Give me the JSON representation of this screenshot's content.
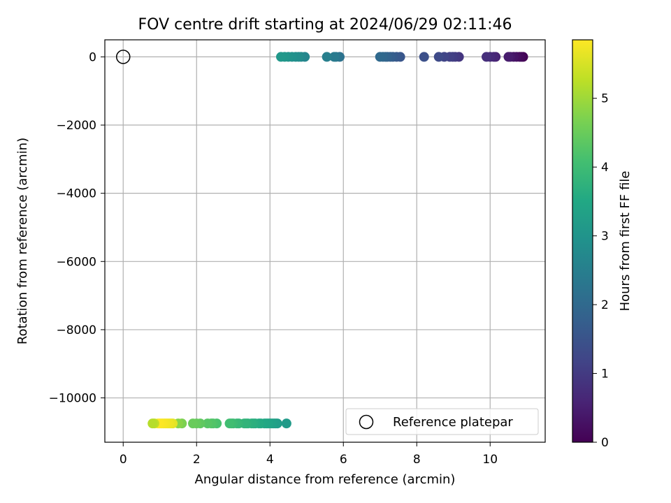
{
  "chart_data": {
    "type": "scatter",
    "title": "FOV centre drift starting at 2024/06/29 02:11:46",
    "xlabel": "Angular distance from reference (arcmin)",
    "ylabel": "Rotation from reference (arcmin)",
    "xlim": [
      -0.5,
      11.5
    ],
    "ylim": [
      -11300,
      500
    ],
    "xticks": [
      0,
      2,
      4,
      6,
      8,
      10
    ],
    "xtick_labels": [
      "0",
      "2",
      "4",
      "6",
      "8",
      "10"
    ],
    "yticks": [
      0,
      -2000,
      -4000,
      -6000,
      -8000,
      -10000
    ],
    "ytick_labels": [
      "0",
      "−2000",
      "−4000",
      "−6000",
      "−8000",
      "−10000"
    ],
    "grid": true,
    "legend": {
      "position": "lower-right",
      "entries": [
        "Reference platepar"
      ]
    },
    "reference_point": {
      "x": 0,
      "y": 0,
      "label": "Reference platepar"
    },
    "colorbar": {
      "label": "Hours from first FF file",
      "range": [
        0,
        5.85
      ],
      "ticks": [
        0,
        1,
        2,
        3,
        4,
        5
      ],
      "tick_labels": [
        "0",
        "1",
        "2",
        "3",
        "4",
        "5"
      ],
      "colormap": "viridis"
    },
    "series": [
      {
        "x": [
          10.9,
          10.85,
          10.8,
          10.72,
          10.64,
          10.55,
          10.5,
          10.15,
          10.1,
          10.0,
          9.9,
          9.15,
          9.05,
          8.98,
          8.9,
          8.75,
          8.6,
          8.2,
          7.55,
          7.45,
          7.35,
          7.28,
          7.2,
          7.15,
          7.08,
          7.0,
          5.9,
          5.8,
          5.75,
          5.55,
          4.95,
          4.85,
          4.78,
          4.7,
          4.6,
          4.5,
          4.4,
          4.3
        ],
        "y": [
          0,
          0,
          0,
          0,
          0,
          0,
          0,
          0,
          0,
          0,
          0,
          0,
          0,
          0,
          0,
          0,
          0,
          0,
          0,
          0,
          0,
          0,
          0,
          0,
          0,
          0,
          0,
          0,
          0,
          0,
          0,
          0,
          0,
          0,
          0,
          0,
          0,
          0
        ],
        "hours": [
          0.0,
          0.08,
          0.15,
          0.22,
          0.3,
          0.38,
          0.45,
          0.55,
          0.62,
          0.7,
          0.78,
          0.9,
          0.98,
          1.05,
          1.12,
          1.2,
          1.3,
          1.42,
          1.55,
          1.62,
          1.7,
          1.76,
          1.82,
          1.88,
          1.94,
          2.0,
          2.2,
          2.3,
          2.38,
          2.5,
          2.65,
          2.72,
          2.8,
          2.86,
          2.92,
          2.98,
          3.04,
          3.1
        ]
      },
      {
        "x": [
          4.45,
          4.2,
          4.15,
          4.1,
          4.05,
          4.0,
          3.95,
          3.9,
          3.85,
          3.75,
          3.7,
          3.6,
          3.55,
          3.5,
          3.4,
          3.35,
          3.3,
          3.15,
          3.1,
          3.0,
          2.95,
          2.9,
          2.55,
          2.45,
          2.4,
          2.3,
          2.1,
          2.0,
          1.9,
          1.6,
          1.5,
          1.35,
          1.3,
          1.25,
          1.2,
          1.15,
          1.1,
          1.05,
          1.0,
          0.95,
          0.85,
          0.8
        ],
        "y": [
          -10750,
          -10750,
          -10750,
          -10750,
          -10750,
          -10750,
          -10750,
          -10750,
          -10750,
          -10750,
          -10750,
          -10750,
          -10750,
          -10750,
          -10750,
          -10750,
          -10750,
          -10750,
          -10750,
          -10750,
          -10750,
          -10750,
          -10750,
          -10750,
          -10750,
          -10750,
          -10750,
          -10750,
          -10750,
          -10750,
          -10750,
          -10750,
          -10750,
          -10750,
          -10750,
          -10750,
          -10750,
          -10750,
          -10750,
          -10750,
          -10750,
          -10750
        ],
        "hours": [
          3.15,
          3.2,
          3.25,
          3.28,
          3.32,
          3.36,
          3.4,
          3.44,
          3.48,
          3.52,
          3.56,
          3.6,
          3.64,
          3.68,
          3.72,
          3.76,
          3.8,
          3.85,
          3.9,
          3.95,
          4.0,
          4.05,
          4.15,
          4.2,
          4.25,
          4.3,
          4.4,
          4.45,
          4.5,
          4.7,
          4.8,
          5.6,
          5.65,
          5.7,
          5.72,
          5.75,
          5.78,
          5.8,
          5.82,
          5.84,
          5.3,
          5.2
        ]
      }
    ]
  }
}
